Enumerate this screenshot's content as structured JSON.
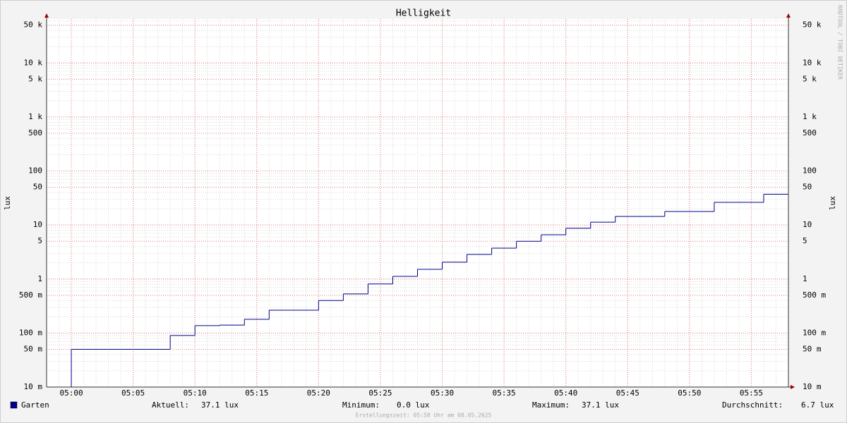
{
  "chart_data": {
    "type": "step",
    "title": "Helligkeit",
    "ylabel": "lux",
    "y2label": "lux",
    "log_y": true,
    "grid": true,
    "xlim": [
      "04:58",
      "05:58"
    ],
    "ylim": [
      0.01,
      65000
    ],
    "xticks": [
      "05:00",
      "05:05",
      "05:10",
      "05:15",
      "05:20",
      "05:25",
      "05:30",
      "05:35",
      "05:40",
      "05:45",
      "05:50",
      "05:55"
    ],
    "yticks": [
      {
        "value": 50000,
        "label": "50 k"
      },
      {
        "value": 10000,
        "label": "10 k"
      },
      {
        "value": 5000,
        "label": "5 k"
      },
      {
        "value": 1000,
        "label": "1 k"
      },
      500,
      100,
      50,
      10,
      5,
      1,
      {
        "value": 0.5,
        "label": "500 m"
      },
      {
        "value": 0.1,
        "label": "100 m"
      },
      {
        "value": 0.05,
        "label": "50 m"
      },
      {
        "value": 0.01,
        "label": "10 m"
      }
    ],
    "x": [
      "04:58",
      "05:00",
      "05:08",
      "05:10",
      "05:12",
      "05:14",
      "05:16",
      "05:20",
      "05:22",
      "05:24",
      "05:26",
      "05:28",
      "05:30",
      "05:32",
      "05:34",
      "05:36",
      "05:38",
      "05:40",
      "05:42",
      "05:44",
      "05:48",
      "05:52",
      "05:56"
    ],
    "series": [
      {
        "name": "Garten",
        "color": "#00008b",
        "values": [
          0,
          0.05,
          0.09,
          0.137,
          0.14,
          0.18,
          0.265,
          0.4,
          0.53,
          0.81,
          1.12,
          1.51,
          2.05,
          2.85,
          3.73,
          5.0,
          6.6,
          8.7,
          11.3,
          14.4,
          17.8,
          26.3,
          37.1
        ]
      }
    ],
    "stats": [
      {
        "label": "Aktuell:",
        "value": "37.1 lux"
      },
      {
        "label": "Minimum:",
        "value": "0.0 lux"
      },
      {
        "label": "Maximum:",
        "value": "37.1 lux"
      },
      {
        "label": "Durchschnitt:",
        "value": "6.7 lux"
      }
    ],
    "footer": "Erstellungszeit: 05:58 Uhr am 08.05.2025",
    "watermark": "RRDTOOL / TOBI OETIKER"
  }
}
